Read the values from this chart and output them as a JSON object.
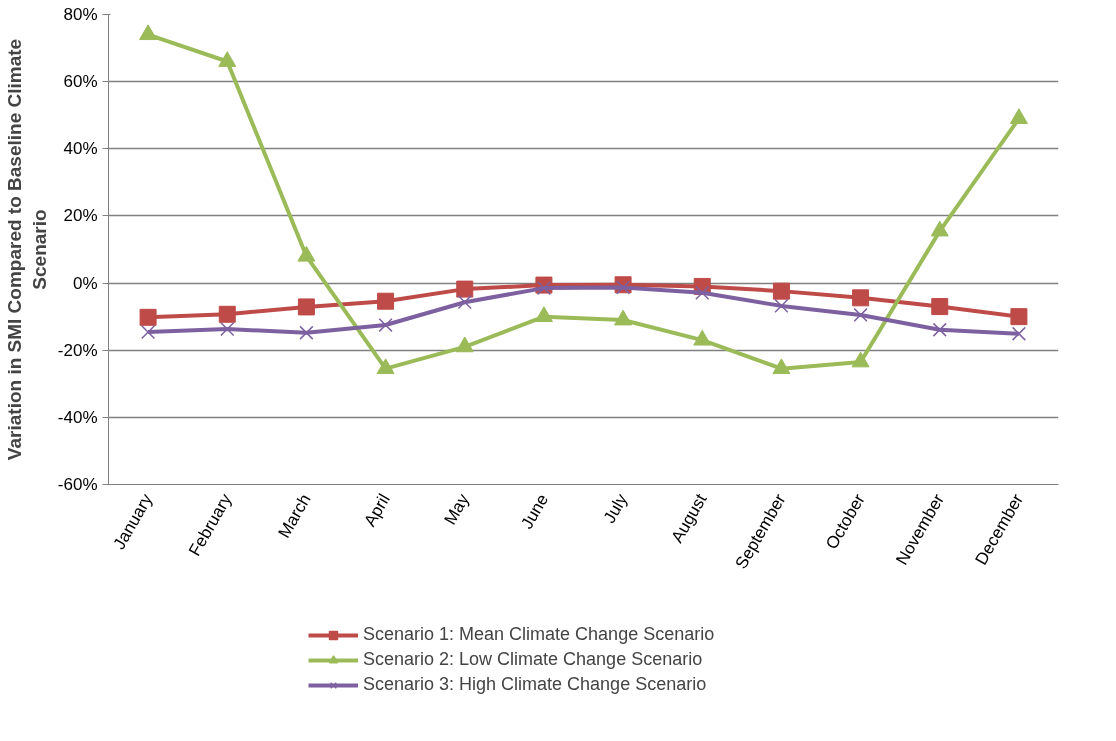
{
  "chart_data": {
    "type": "line",
    "ylabel": "Variation in SMI Compared to Baseline Climate Scenario",
    "categories": [
      "January",
      "February",
      "March",
      "April",
      "May",
      "June",
      "July",
      "August",
      "September",
      "October",
      "November",
      "December"
    ],
    "series": [
      {
        "name": "Scenario 1: Mean Climate Change Scenario",
        "color": "#be4b48",
        "marker": "square",
        "values": [
          -10.2,
          -9.3,
          -7.1,
          -5.4,
          -1.8,
          -0.6,
          -0.5,
          -1,
          -2.4,
          -4.4,
          -7,
          -10
        ]
      },
      {
        "name": "Scenario 2: Low Climate Change Scenario",
        "color": "#9bbb59",
        "marker": "triangle",
        "values": [
          74,
          66,
          8,
          -25.5,
          -19,
          -10,
          -11,
          -17,
          -25.5,
          -23.5,
          15.5,
          49
        ]
      },
      {
        "name": "Scenario 3: High Climate Change Scenario",
        "color": "#7d60a0",
        "marker": "cross",
        "values": [
          -14.6,
          -13.7,
          -14.8,
          -12.5,
          -5.7,
          -1.5,
          -1.3,
          -2.9,
          -6.8,
          -9.5,
          -13.9,
          -15.1
        ]
      }
    ],
    "ylim": [
      -60,
      80
    ],
    "yticks": [
      {
        "value": -60,
        "label": "-60%"
      },
      {
        "value": -40,
        "label": "-40%"
      },
      {
        "value": -20,
        "label": "-20%"
      },
      {
        "value": 0,
        "label": "0%"
      },
      {
        "value": 20,
        "label": "20%"
      },
      {
        "value": 40,
        "label": "40%"
      },
      {
        "value": 60,
        "label": "60%"
      },
      {
        "value": 80,
        "label": "80%"
      }
    ],
    "grid": "y",
    "legend": "bottom",
    "line_style": "solid"
  }
}
